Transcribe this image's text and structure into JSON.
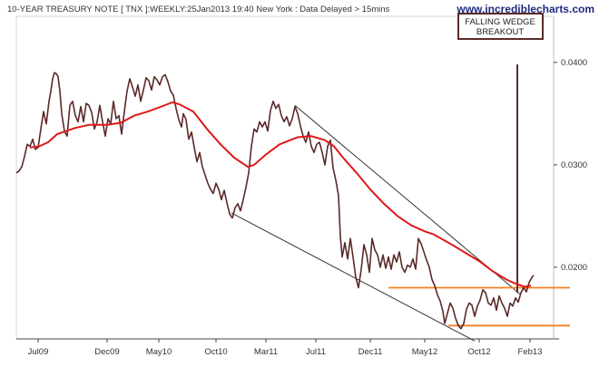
{
  "chart_data": {
    "type": "line",
    "header": "10-YEAR TREASURY NOTE [ TNX ]:WEEKLY:25Jan2013 19:40 New York : Data Delayed > 15mins",
    "watermark": "www.incrediblecharts.com",
    "annotation": [
      "FALLING WEDGE",
      "BREAKOUT"
    ],
    "x_ticks": [
      "Jul09",
      "Dec09",
      "May10",
      "Oct10",
      "Mar11",
      "Jul11",
      "Dec11",
      "May12",
      "Oct12",
      "Feb13"
    ],
    "y_ticks": [
      "0.0400",
      "0.0300",
      "0.0200"
    ],
    "ylim": [
      0.013,
      0.0445
    ],
    "ylabel": "",
    "xlabel": "",
    "series": [
      {
        "color": "#5a2a28",
        "values": [
          [
            0,
            0.0292
          ],
          [
            3,
            0.0294
          ],
          [
            6,
            0.0298
          ],
          [
            9,
            0.0308
          ],
          [
            12,
            0.032
          ],
          [
            15,
            0.0318
          ],
          [
            18,
            0.0325
          ],
          [
            21,
            0.0315
          ],
          [
            24,
            0.0317
          ],
          [
            27,
            0.0335
          ],
          [
            30,
            0.0352
          ],
          [
            33,
            0.034
          ],
          [
            36,
            0.0362
          ],
          [
            38,
            0.0372
          ],
          [
            40,
            0.0384
          ],
          [
            42,
            0.039
          ],
          [
            44,
            0.0389
          ],
          [
            46,
            0.0386
          ],
          [
            48,
            0.0372
          ],
          [
            50,
            0.035
          ],
          [
            53,
            0.0333
          ],
          [
            56,
            0.0328
          ],
          [
            59,
            0.0358
          ],
          [
            62,
            0.0362
          ],
          [
            65,
            0.0348
          ],
          [
            68,
            0.0342
          ],
          [
            71,
            0.0357
          ],
          [
            74,
            0.0342
          ],
          [
            77,
            0.036
          ],
          [
            80,
            0.0358
          ],
          [
            83,
            0.0351
          ],
          [
            86,
            0.0335
          ],
          [
            89,
            0.0342
          ],
          [
            92,
            0.0358
          ],
          [
            95,
            0.0342
          ],
          [
            98,
            0.0328
          ],
          [
            101,
            0.0345
          ],
          [
            104,
            0.034
          ],
          [
            107,
            0.0362
          ],
          [
            110,
            0.0345
          ],
          [
            113,
            0.0348
          ],
          [
            116,
            0.033
          ],
          [
            119,
            0.0352
          ],
          [
            122,
            0.0372
          ],
          [
            125,
            0.0384
          ],
          [
            128,
            0.0376
          ],
          [
            131,
            0.0367
          ],
          [
            134,
            0.0378
          ],
          [
            137,
            0.0362
          ],
          [
            140,
            0.0373
          ],
          [
            143,
            0.0385
          ],
          [
            146,
            0.0382
          ],
          [
            149,
            0.0373
          ],
          [
            152,
            0.0386
          ],
          [
            155,
            0.0383
          ],
          [
            158,
            0.0378
          ],
          [
            161,
            0.0386
          ],
          [
            164,
            0.0388
          ],
          [
            167,
            0.0381
          ],
          [
            170,
            0.0372
          ],
          [
            173,
            0.0368
          ],
          [
            176,
            0.0355
          ],
          [
            179,
            0.0344
          ],
          [
            182,
            0.0337
          ],
          [
            184,
            0.035
          ],
          [
            187,
            0.0344
          ],
          [
            190,
            0.0325
          ],
          [
            193,
            0.0332
          ],
          [
            196,
            0.0317
          ],
          [
            199,
            0.0303
          ],
          [
            202,
            0.0312
          ],
          [
            205,
            0.0298
          ],
          [
            208,
            0.029
          ],
          [
            211,
            0.0282
          ],
          [
            214,
            0.0276
          ],
          [
            217,
            0.0272
          ],
          [
            220,
            0.0282
          ],
          [
            223,
            0.0276
          ],
          [
            226,
            0.0266
          ],
          [
            229,
            0.0275
          ],
          [
            232,
            0.0263
          ],
          [
            235,
            0.0252
          ],
          [
            238,
            0.0248
          ],
          [
            241,
            0.0258
          ],
          [
            244,
            0.0262
          ],
          [
            247,
            0.0255
          ],
          [
            250,
            0.0266
          ],
          [
            253,
            0.0278
          ],
          [
            256,
            0.0292
          ],
          [
            259,
            0.0318
          ],
          [
            262,
            0.0335
          ],
          [
            265,
            0.0332
          ],
          [
            268,
            0.0342
          ],
          [
            271,
            0.0337
          ],
          [
            274,
            0.0342
          ],
          [
            277,
            0.0333
          ],
          [
            280,
            0.0353
          ],
          [
            283,
            0.0362
          ],
          [
            286,
            0.0355
          ],
          [
            289,
            0.0359
          ],
          [
            292,
            0.0348
          ],
          [
            295,
            0.0342
          ],
          [
            298,
            0.0347
          ],
          [
            301,
            0.0338
          ],
          [
            304,
            0.0345
          ],
          [
            307,
            0.0357
          ],
          [
            310,
            0.035
          ],
          [
            313,
            0.0338
          ],
          [
            316,
            0.0328
          ],
          [
            319,
            0.0322
          ],
          [
            322,
            0.0332
          ],
          [
            325,
            0.0318
          ],
          [
            328,
            0.0312
          ],
          [
            331,
            0.032
          ],
          [
            334,
            0.0322
          ],
          [
            337,
            0.0312
          ],
          [
            340,
            0.03
          ],
          [
            343,
            0.0318
          ],
          [
            346,
            0.0324
          ],
          [
            349,
            0.0297
          ],
          [
            352,
            0.0285
          ],
          [
            355,
            0.027
          ],
          [
            357,
            0.023
          ],
          [
            359,
            0.021
          ],
          [
            362,
            0.0224
          ],
          [
            365,
            0.0208
          ],
          [
            368,
            0.0228
          ],
          [
            371,
            0.021
          ],
          [
            374,
            0.019
          ],
          [
            377,
            0.018
          ],
          [
            380,
            0.0198
          ],
          [
            383,
            0.0222
          ],
          [
            386,
            0.0212
          ],
          [
            389,
            0.0195
          ],
          [
            392,
            0.0228
          ],
          [
            395,
            0.0217
          ],
          [
            398,
            0.0212
          ],
          [
            401,
            0.02
          ],
          [
            404,
            0.0212
          ],
          [
            407,
            0.0199
          ],
          [
            410,
            0.021
          ],
          [
            413,
            0.0198
          ],
          [
            416,
            0.0212
          ],
          [
            419,
            0.0205
          ],
          [
            422,
            0.0215
          ],
          [
            425,
            0.02
          ],
          [
            428,
            0.0195
          ],
          [
            431,
            0.0202
          ],
          [
            434,
            0.02
          ],
          [
            437,
            0.0208
          ],
          [
            440,
            0.0198
          ],
          [
            443,
            0.0228
          ],
          [
            446,
            0.0223
          ],
          [
            449,
            0.0215
          ],
          [
            452,
            0.0207
          ],
          [
            455,
            0.02
          ],
          [
            458,
            0.0188
          ],
          [
            461,
            0.0182
          ],
          [
            464,
            0.0173
          ],
          [
            467,
            0.0167
          ],
          [
            470,
            0.0157
          ],
          [
            472,
            0.0145
          ],
          [
            475,
            0.0155
          ],
          [
            478,
            0.0165
          ],
          [
            481,
            0.016
          ],
          [
            484,
            0.015
          ],
          [
            487,
            0.0143
          ],
          [
            490,
            0.014
          ],
          [
            493,
            0.0145
          ],
          [
            496,
            0.0159
          ],
          [
            499,
            0.0165
          ],
          [
            502,
            0.0163
          ],
          [
            505,
            0.0152
          ],
          [
            508,
            0.0162
          ],
          [
            511,
            0.0168
          ],
          [
            514,
            0.0178
          ],
          [
            517,
            0.0175
          ],
          [
            520,
            0.0165
          ],
          [
            523,
            0.0163
          ],
          [
            526,
            0.017
          ],
          [
            529,
            0.0158
          ],
          [
            532,
            0.0172
          ],
          [
            535,
            0.0165
          ],
          [
            538,
            0.016
          ],
          [
            541,
            0.0152
          ],
          [
            544,
            0.0165
          ],
          [
            547,
            0.0162
          ],
          [
            550,
            0.017
          ],
          [
            553,
            0.0166
          ],
          [
            556,
            0.0175
          ],
          [
            559,
            0.018
          ],
          [
            562,
            0.0176
          ],
          [
            565,
            0.0185
          ],
          [
            568,
            0.019
          ],
          [
            570,
            0.0192
          ]
        ]
      },
      {
        "color": "#e01818",
        "values": [
          [
            15,
            0.0317
          ],
          [
            25,
            0.0318
          ],
          [
            35,
            0.0322
          ],
          [
            45,
            0.033
          ],
          [
            55,
            0.0333
          ],
          [
            65,
            0.0336
          ],
          [
            80,
            0.0339
          ],
          [
            100,
            0.0339
          ],
          [
            115,
            0.0341
          ],
          [
            130,
            0.0348
          ],
          [
            145,
            0.0352
          ],
          [
            160,
            0.0357
          ],
          [
            172,
            0.0361
          ],
          [
            180,
            0.0359
          ],
          [
            195,
            0.0352
          ],
          [
            210,
            0.0335
          ],
          [
            225,
            0.032
          ],
          [
            240,
            0.0307
          ],
          [
            255,
            0.0298
          ],
          [
            262,
            0.03
          ],
          [
            275,
            0.031
          ],
          [
            290,
            0.032
          ],
          [
            310,
            0.0327
          ],
          [
            325,
            0.0328
          ],
          [
            340,
            0.0324
          ],
          [
            350,
            0.0318
          ],
          [
            360,
            0.0307
          ],
          [
            375,
            0.0292
          ],
          [
            390,
            0.0276
          ],
          [
            405,
            0.0262
          ],
          [
            420,
            0.025
          ],
          [
            435,
            0.0241
          ],
          [
            450,
            0.0235
          ],
          [
            460,
            0.0232
          ],
          [
            470,
            0.0227
          ],
          [
            480,
            0.0222
          ],
          [
            495,
            0.0214
          ],
          [
            510,
            0.0206
          ],
          [
            525,
            0.0196
          ],
          [
            540,
            0.0188
          ],
          [
            550,
            0.0184
          ],
          [
            560,
            0.0181
          ],
          [
            567,
            0.0182
          ]
        ]
      }
    ],
    "lines": [
      {
        "color": "#333333",
        "from": [
          237,
          0.0253
        ],
        "to": [
          505,
          0.0128
        ]
      },
      {
        "color": "#333333",
        "from": [
          307,
          0.0358
        ],
        "to": [
          556,
          0.0173
        ]
      },
      {
        "color": "#f08020",
        "from": [
          410,
          0.018
        ],
        "to": [
          610,
          0.018
        ]
      },
      {
        "color": "#f08020",
        "from": [
          476,
          0.0143
        ],
        "to": [
          610,
          0.0143
        ]
      },
      {
        "color": "#5a2a28",
        "from": [
          552,
          0.0398
        ],
        "to": [
          552,
          0.0175
        ]
      }
    ]
  }
}
